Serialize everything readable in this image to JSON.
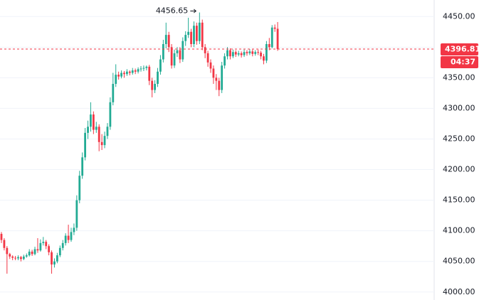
{
  "chart_data": {
    "type": "candlestick",
    "ylim": [
      3987,
      4477
    ],
    "yticks": [
      {
        "value": 4000,
        "label": "4000.00"
      },
      {
        "value": 4050,
        "label": "4050.00"
      },
      {
        "value": 4100,
        "label": "4100.00"
      },
      {
        "value": 4150,
        "label": "4150.00"
      },
      {
        "value": 4200,
        "label": "4200.00"
      },
      {
        "value": 4250,
        "label": "4250.00"
      },
      {
        "value": 4300,
        "label": "4300.00"
      },
      {
        "value": 4350,
        "label": "4350.00"
      },
      {
        "value": 4400,
        "label": "4400.00"
      },
      {
        "value": 4450,
        "label": "4450.00"
      }
    ],
    "grid": true,
    "up_color": "#22ab94",
    "down_color": "#f23645",
    "countdown": "04:37",
    "max_index": 71,
    "open": [
      4095,
      4085,
      4072,
      4062,
      4058,
      4056,
      4055,
      4057,
      4054,
      4058,
      4060,
      4066,
      4062,
      4070,
      4068,
      4080,
      4082,
      4075,
      4065,
      4045,
      4050,
      4060,
      4072,
      4080,
      4092,
      4085,
      4098,
      4105,
      4150,
      4190,
      4220,
      4260,
      4270,
      4290,
      4265,
      4270,
      4245,
      4240,
      4255,
      4270,
      4310,
      4340,
      4355,
      4352,
      4358,
      4356,
      4360,
      4358,
      4362,
      4360,
      4364,
      4365,
      4366,
      4368,
      4345,
      4330,
      4340,
      4360,
      4380,
      4405,
      4420,
      4400,
      4370,
      4390,
      4395,
      4380,
      4410,
      4420,
      4425,
      4405,
      4435,
      4410,
      4440,
      4400,
      4390,
      4375,
      4365,
      4350,
      4345,
      4330,
      4370,
      4385,
      4395,
      4385,
      4392,
      4388,
      4390,
      4387,
      4392,
      4390,
      4393,
      4389,
      4392,
      4391,
      4385,
      4378,
      4405,
      4400,
      4432,
      4430
    ],
    "high": [
      4098,
      4088,
      4075,
      4064,
      4060,
      4059,
      4060,
      4059,
      4061,
      4063,
      4070,
      4069,
      4074,
      4088,
      4086,
      4090,
      4085,
      4078,
      4068,
      4055,
      4064,
      4076,
      4085,
      4096,
      4110,
      4105,
      4112,
      4158,
      4198,
      4228,
      4268,
      4280,
      4310,
      4295,
      4278,
      4274,
      4258,
      4262,
      4276,
      4318,
      4358,
      4372,
      4360,
      4362,
      4361,
      4364,
      4362,
      4366,
      4365,
      4367,
      4369,
      4370,
      4370,
      4371,
      4350,
      4346,
      4366,
      4387,
      4412,
      4440,
      4425,
      4405,
      4396,
      4400,
      4400,
      4416,
      4426,
      4448,
      4430,
      4442,
      4440,
      4456.65,
      4445,
      4405,
      4394,
      4380,
      4370,
      4356,
      4350,
      4376,
      4390,
      4400,
      4398,
      4396,
      4395,
      4394,
      4393,
      4396,
      4395,
      4397,
      4396,
      4395,
      4396,
      4394,
      4389,
      4410,
      4415,
      4436,
      4437,
      4441
    ],
    "low": [
      4080,
      4068,
      4030,
      4054,
      4052,
      4052,
      4052,
      4050,
      4052,
      4056,
      4058,
      4059,
      4060,
      4064,
      4066,
      4076,
      4070,
      4060,
      4030,
      4040,
      4047,
      4057,
      4068,
      4076,
      4080,
      4082,
      4093,
      4100,
      4145,
      4185,
      4215,
      4250,
      4262,
      4258,
      4260,
      4230,
      4232,
      4235,
      4250,
      4265,
      4305,
      4335,
      4347,
      4349,
      4350,
      4353,
      4354,
      4355,
      4356,
      4357,
      4360,
      4361,
      4362,
      4338,
      4318,
      4325,
      4335,
      4355,
      4375,
      4398,
      4392,
      4365,
      4366,
      4384,
      4374,
      4376,
      4402,
      4415,
      4400,
      4400,
      4404,
      4405,
      4395,
      4382,
      4368,
      4358,
      4340,
      4330,
      4320,
      4325,
      4365,
      4380,
      4380,
      4382,
      4384,
      4385,
      4383,
      4384,
      4386,
      4387,
      4385,
      4386,
      4387,
      4380,
      4372,
      4374,
      4395,
      4398,
      4425,
      4394
    ],
    "close": [
      4085,
      4072,
      4062,
      4058,
      4056,
      4055,
      4057,
      4054,
      4058,
      4060,
      4066,
      4062,
      4070,
      4068,
      4080,
      4082,
      4075,
      4065,
      4045,
      4050,
      4060,
      4072,
      4080,
      4092,
      4085,
      4098,
      4105,
      4150,
      4190,
      4220,
      4260,
      4270,
      4290,
      4265,
      4270,
      4245,
      4240,
      4255,
      4270,
      4310,
      4340,
      4355,
      4352,
      4358,
      4356,
      4360,
      4358,
      4362,
      4360,
      4364,
      4365,
      4366,
      4368,
      4345,
      4330,
      4340,
      4360,
      4380,
      4405,
      4420,
      4400,
      4370,
      4390,
      4395,
      4380,
      4410,
      4420,
      4425,
      4405,
      4435,
      4410,
      4440,
      4400,
      4390,
      4375,
      4365,
      4350,
      4345,
      4330,
      4370,
      4385,
      4395,
      4385,
      4392,
      4388,
      4390,
      4387,
      4392,
      4390,
      4393,
      4389,
      4392,
      4391,
      4385,
      4378,
      4405,
      4400,
      4432,
      4430,
      4396.81
    ]
  }
}
